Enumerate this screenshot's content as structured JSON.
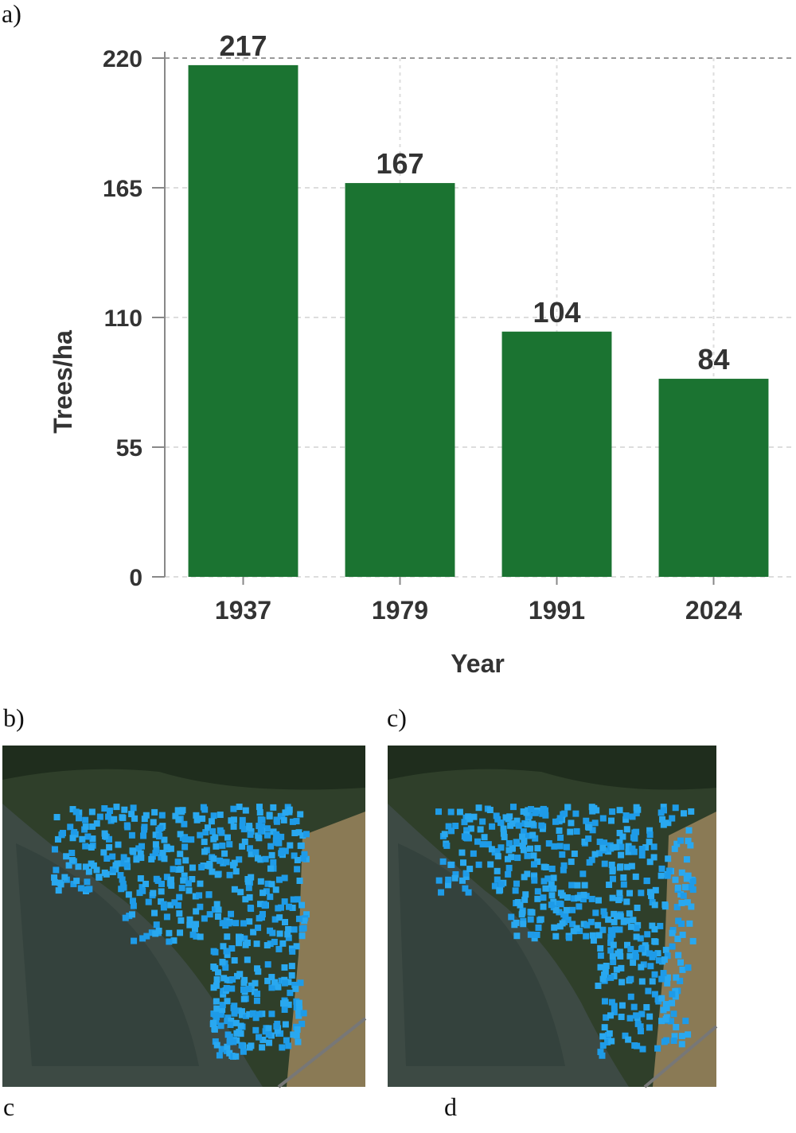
{
  "chart_data": {
    "type": "bar",
    "categories": [
      "1937",
      "1979",
      "1991",
      "2024"
    ],
    "values": [
      217,
      167,
      104,
      84
    ],
    "color": "#1b7331",
    "ylim": [
      0,
      220
    ],
    "yticks": [
      0,
      55,
      110,
      165,
      220
    ],
    "grid": true,
    "x_label": "Year",
    "y_label": "Trees/ha"
  },
  "panel_labels": [
    "a)",
    "b)",
    "c)"
  ],
  "captions": [
    "c",
    "d"
  ]
}
